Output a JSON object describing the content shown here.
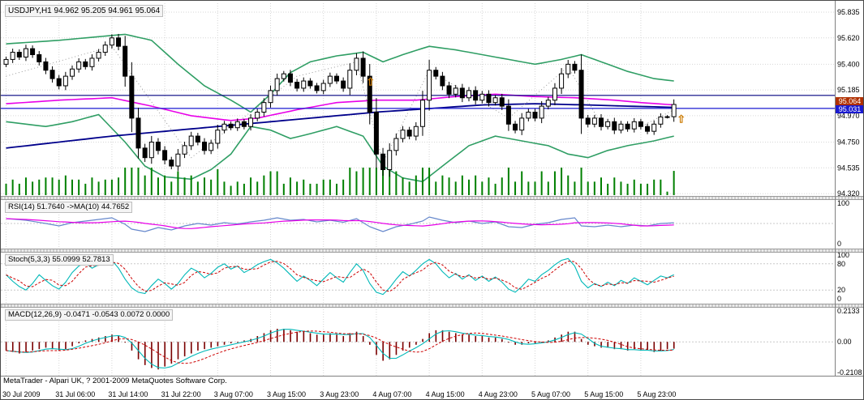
{
  "window": {
    "title_box": "USDJPY,H1 94.962 95.205 94.961 95.064",
    "copyright": "MetaTrader - Alpari UK, ? 2001-2009 MetaQuotes Software Corp."
  },
  "colors": {
    "bull": "#ffffff",
    "bear": "#000000",
    "outline": "#000000",
    "volume": "#008000",
    "grid": "#d6d6d6",
    "level": "#c8c8c8",
    "bid_box_bg": "#1a1ad0",
    "ask_box_bg": "#b03000",
    "rsi_line": "#6688cc",
    "rsi_ma": "#e800e8",
    "stoch_main": "#00b8b8",
    "stoch_signal": "#cc0000",
    "macd_hist": "#7a0000",
    "macd_line": "#00b8b8",
    "macd_signal": "#cc0000",
    "arrow": "#cc7a00"
  },
  "main_chart": {
    "price_ticks": [
      "95.835",
      "95.620",
      "95.400",
      "95.185",
      "94.970",
      "94.750",
      "94.535",
      "94.320"
    ],
    "bid_box": "95.031",
    "ask_box": "95.064",
    "hlines": [
      {
        "price": 95.14,
        "color": "#000080"
      },
      {
        "price": 95.031,
        "color": "#1a1ad0"
      }
    ]
  },
  "indicators": {
    "rsi": {
      "label": "RSI(14) 51.7640  ->MA(10) 44.7652",
      "scale": [
        "100",
        "0"
      ],
      "levels": [
        50
      ],
      "points": [
        [
          0,
          62
        ],
        [
          3,
          58
        ],
        [
          6,
          50
        ],
        [
          8,
          44
        ],
        [
          10,
          52
        ],
        [
          13,
          58
        ],
        [
          16,
          64
        ],
        [
          18,
          48
        ],
        [
          19,
          36
        ],
        [
          21,
          30
        ],
        [
          23,
          40
        ],
        [
          25,
          34
        ],
        [
          27,
          44
        ],
        [
          29,
          50
        ],
        [
          31,
          46
        ],
        [
          33,
          52
        ],
        [
          35,
          49
        ],
        [
          37,
          54
        ],
        [
          39,
          58
        ],
        [
          41,
          64
        ],
        [
          43,
          58
        ],
        [
          45,
          60
        ],
        [
          47,
          54
        ],
        [
          49,
          58
        ],
        [
          51,
          53
        ],
        [
          53,
          62
        ],
        [
          55,
          42
        ],
        [
          57,
          30
        ],
        [
          59,
          42
        ],
        [
          61,
          48
        ],
        [
          63,
          56
        ],
        [
          64,
          66
        ],
        [
          66,
          58
        ],
        [
          68,
          52
        ],
        [
          70,
          56
        ],
        [
          72,
          50
        ],
        [
          74,
          54
        ],
        [
          76,
          42
        ],
        [
          78,
          40
        ],
        [
          80,
          48
        ],
        [
          82,
          52
        ],
        [
          84,
          60
        ],
        [
          86,
          64
        ],
        [
          87,
          44
        ],
        [
          89,
          42
        ],
        [
          91,
          46
        ],
        [
          93,
          42
        ],
        [
          95,
          46
        ],
        [
          97,
          44
        ],
        [
          99,
          50
        ],
        [
          101,
          51.76
        ]
      ]
    },
    "stoch": {
      "label": "Stoch(5,3,3) 55.0999 52.7813",
      "scale": [
        "100",
        "80",
        "20",
        "0"
      ],
      "levels": [
        80,
        20
      ],
      "values": [
        55,
        40,
        28,
        20,
        35,
        55,
        42,
        30,
        22,
        38,
        60,
        75,
        82,
        70,
        78,
        85,
        88,
        70,
        45,
        25,
        15,
        12,
        30,
        45,
        35,
        22,
        35,
        55,
        70,
        62,
        48,
        58,
        72,
        80,
        68,
        75,
        60,
        68,
        78,
        85,
        90,
        82,
        70,
        55,
        40,
        52,
        42,
        30,
        45,
        60,
        48,
        38,
        60,
        80,
        65,
        35,
        15,
        10,
        25,
        45,
        62,
        52,
        65,
        80,
        90,
        80,
        62,
        48,
        58,
        45,
        55,
        42,
        52,
        40,
        50,
        38,
        22,
        15,
        28,
        45,
        40,
        55,
        65,
        78,
        88,
        92,
        75,
        40,
        25,
        35,
        28,
        38,
        30,
        42,
        35,
        48,
        40,
        32,
        42,
        52,
        48,
        55.1
      ]
    },
    "macd": {
      "label": "MACD(12,26,9) -0.0471 -0.0543 0.0072 0.0000",
      "scale": [
        "0.2133",
        "0.00",
        "-0.2108"
      ],
      "levels": [
        0
      ],
      "values": [
        -0.06,
        -0.07,
        -0.08,
        -0.07,
        -0.06,
        -0.05,
        -0.04,
        -0.05,
        -0.06,
        -0.05,
        -0.03,
        -0.01,
        0.01,
        0.02,
        0.03,
        0.04,
        0.05,
        0.04,
        0.0,
        -0.06,
        -0.12,
        -0.16,
        -0.18,
        -0.19,
        -0.17,
        -0.15,
        -0.12,
        -0.1,
        -0.08,
        -0.06,
        -0.05,
        -0.04,
        -0.03,
        -0.02,
        -0.01,
        0.0,
        0.01,
        0.02,
        0.04,
        0.06,
        0.08,
        0.09,
        0.09,
        0.08,
        0.07,
        0.07,
        0.06,
        0.05,
        0.05,
        0.06,
        0.05,
        0.04,
        0.06,
        0.07,
        0.04,
        -0.02,
        -0.09,
        -0.13,
        -0.12,
        -0.09,
        -0.06,
        -0.04,
        -0.02,
        0.02,
        0.06,
        0.08,
        0.08,
        0.07,
        0.06,
        0.05,
        0.05,
        0.04,
        0.04,
        0.03,
        0.03,
        0.02,
        0.0,
        -0.02,
        -0.02,
        -0.01,
        -0.01,
        0.0,
        0.01,
        0.03,
        0.05,
        0.07,
        0.07,
        0.02,
        -0.02,
        -0.03,
        -0.04,
        -0.04,
        -0.05,
        -0.05,
        -0.06,
        -0.05,
        -0.06,
        -0.06,
        -0.07,
        -0.06,
        -0.05,
        -0.047
      ]
    }
  },
  "time_axis": {
    "labels": [
      "30 Jul 2009",
      "31 Jul 06:00",
      "31 Jul 14:00",
      "31 Jul 22:00",
      "3 Aug 07:00",
      "3 Aug 15:00",
      "3 Aug 23:00",
      "4 Aug 07:00",
      "4 Aug 15:00",
      "4 Aug 23:00",
      "5 Aug 07:00",
      "5 Aug 15:00",
      "5 Aug 23:00"
    ]
  },
  "chart_data": {
    "type": "candlestick",
    "symbol": "USDJPY",
    "timeframe": "H1",
    "title": "USDJPY,H1 94.962 95.205 94.961 95.064",
    "y_range": [
      94.32,
      95.835
    ],
    "ohlc_current": {
      "open": 94.962,
      "high": 95.205,
      "low": 94.961,
      "close": 95.064
    },
    "bid": 95.031,
    "first_open": 95.4,
    "closes": [
      95.44,
      95.5,
      95.46,
      95.53,
      95.48,
      95.42,
      95.35,
      95.28,
      95.22,
      95.3,
      95.36,
      95.42,
      95.38,
      95.45,
      95.5,
      95.56,
      95.62,
      95.55,
      95.3,
      94.95,
      94.7,
      94.62,
      94.75,
      94.68,
      94.6,
      94.55,
      94.65,
      94.72,
      94.8,
      94.75,
      94.68,
      94.74,
      94.85,
      94.9,
      94.87,
      94.92,
      94.88,
      94.95,
      95.0,
      95.08,
      95.18,
      95.28,
      95.32,
      95.25,
      95.2,
      95.26,
      95.22,
      95.18,
      95.24,
      95.3,
      95.26,
      95.2,
      95.35,
      95.45,
      95.3,
      95.0,
      94.65,
      94.52,
      94.68,
      94.78,
      94.85,
      94.8,
      94.88,
      95.1,
      95.35,
      95.3,
      95.22,
      95.15,
      95.2,
      95.12,
      95.18,
      95.1,
      95.15,
      95.08,
      95.12,
      95.05,
      94.9,
      94.85,
      94.95,
      95.0,
      94.95,
      95.05,
      95.1,
      95.2,
      95.32,
      95.4,
      95.35,
      94.95,
      94.9,
      94.95,
      94.88,
      94.92,
      94.85,
      94.9,
      94.86,
      94.92,
      94.88,
      94.84,
      94.9,
      94.96,
      94.962,
      95.064
    ],
    "overlays": [
      {
        "name": "bollinger-upper",
        "color": "#2f9e64",
        "width": 1.6,
        "points": [
          [
            0,
            95.57
          ],
          [
            8,
            95.6
          ],
          [
            14,
            95.63
          ],
          [
            18,
            95.65
          ],
          [
            22,
            95.6
          ],
          [
            26,
            95.4
          ],
          [
            30,
            95.22
          ],
          [
            34,
            95.1
          ],
          [
            37,
            95.0
          ],
          [
            40,
            95.15
          ],
          [
            43,
            95.33
          ],
          [
            46,
            95.42
          ],
          [
            50,
            95.47
          ],
          [
            54,
            95.5
          ],
          [
            57,
            95.42
          ],
          [
            60,
            95.48
          ],
          [
            64,
            95.55
          ],
          [
            68,
            95.52
          ],
          [
            72,
            95.48
          ],
          [
            76,
            95.44
          ],
          [
            80,
            95.4
          ],
          [
            84,
            95.44
          ],
          [
            87,
            95.48
          ],
          [
            90,
            95.42
          ],
          [
            94,
            95.34
          ],
          [
            98,
            95.28
          ],
          [
            101,
            95.26
          ]
        ]
      },
      {
        "name": "bollinger-lower",
        "color": "#2f9e64",
        "width": 1.6,
        "points": [
          [
            0,
            94.92
          ],
          [
            6,
            94.88
          ],
          [
            10,
            94.92
          ],
          [
            14,
            94.98
          ],
          [
            18,
            94.75
          ],
          [
            21,
            94.55
          ],
          [
            24,
            94.46
          ],
          [
            28,
            94.44
          ],
          [
            31,
            94.52
          ],
          [
            34,
            94.65
          ],
          [
            37,
            94.88
          ],
          [
            40,
            94.85
          ],
          [
            43,
            94.78
          ],
          [
            46,
            94.82
          ],
          [
            50,
            94.88
          ],
          [
            54,
            94.8
          ],
          [
            57,
            94.55
          ],
          [
            60,
            94.45
          ],
          [
            63,
            94.42
          ],
          [
            66,
            94.55
          ],
          [
            70,
            94.72
          ],
          [
            74,
            94.8
          ],
          [
            78,
            94.76
          ],
          [
            82,
            94.72
          ],
          [
            85,
            94.65
          ],
          [
            88,
            94.62
          ],
          [
            91,
            94.68
          ],
          [
            94,
            94.72
          ],
          [
            98,
            94.76
          ],
          [
            101,
            94.8
          ]
        ]
      },
      {
        "name": "ma-fast-magenta",
        "color": "#e800e8",
        "width": 1.6,
        "points": [
          [
            0,
            95.07
          ],
          [
            8,
            95.1
          ],
          [
            16,
            95.12
          ],
          [
            22,
            95.05
          ],
          [
            28,
            94.97
          ],
          [
            34,
            94.93
          ],
          [
            38,
            94.95
          ],
          [
            44,
            95.02
          ],
          [
            50,
            95.08
          ],
          [
            56,
            95.1
          ],
          [
            62,
            95.1
          ],
          [
            68,
            95.13
          ],
          [
            74,
            95.15
          ],
          [
            80,
            95.13
          ],
          [
            86,
            95.12
          ],
          [
            92,
            95.1
          ],
          [
            96,
            95.08
          ],
          [
            101,
            95.06
          ]
        ]
      },
      {
        "name": "ma-slow-blue",
        "color": "#00008b",
        "width": 1.8,
        "points": [
          [
            0,
            94.7
          ],
          [
            8,
            94.75
          ],
          [
            16,
            94.8
          ],
          [
            24,
            94.84
          ],
          [
            32,
            94.88
          ],
          [
            40,
            94.92
          ],
          [
            48,
            94.96
          ],
          [
            56,
            95.0
          ],
          [
            64,
            95.03
          ],
          [
            72,
            95.06
          ],
          [
            80,
            95.07
          ],
          [
            88,
            95.06
          ],
          [
            94,
            95.05
          ],
          [
            101,
            95.04
          ]
        ]
      },
      {
        "name": "dotted-gray-zigzag",
        "color": "#9a9a9a",
        "width": 1,
        "dash": "1 3",
        "points": [
          [
            0,
            95.3
          ],
          [
            16,
            95.55
          ],
          [
            28,
            94.62
          ],
          [
            37,
            95.0
          ],
          [
            44,
            95.3
          ],
          [
            53,
            95.42
          ],
          [
            57,
            94.58
          ],
          [
            64,
            95.35
          ],
          [
            70,
            95.15
          ],
          [
            76,
            94.95
          ],
          [
            85,
            95.38
          ],
          [
            90,
            94.9
          ],
          [
            96,
            94.88
          ],
          [
            101,
            95.02
          ]
        ]
      }
    ],
    "arrows": [
      {
        "bar": 55,
        "price": 95.25
      },
      {
        "bar": 102,
        "price": 94.94
      }
    ]
  }
}
